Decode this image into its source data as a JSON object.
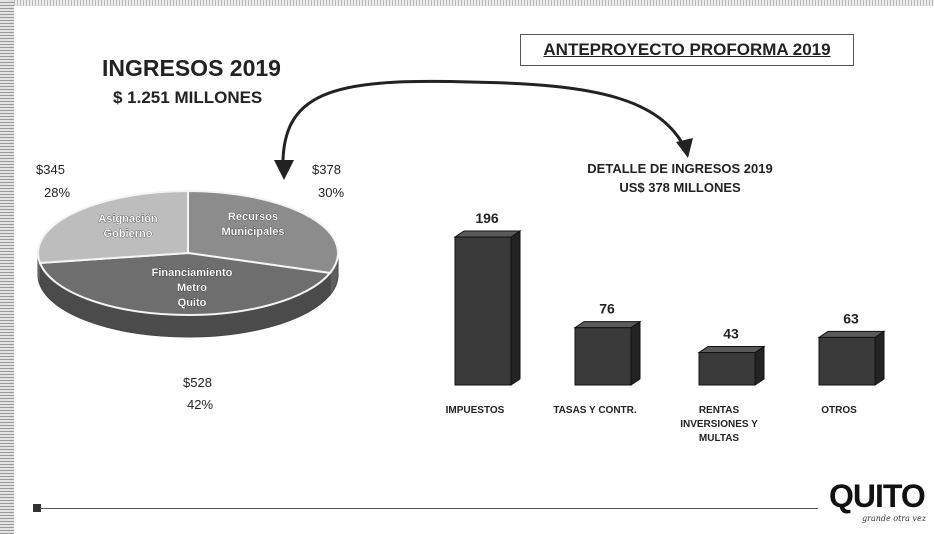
{
  "header": {
    "title": "ANTEPROYECTO PROFORMA 2019"
  },
  "pie_block": {
    "title": "INGRESOS 2019",
    "subtitle": "$ 1.251 MILLONES"
  },
  "bar_block": {
    "title": "DETALLE DE INGRESOS 2019",
    "subtitle": "US$ 378 MILLONES"
  },
  "logo": {
    "text": "QUITO",
    "tagline": "grande otra vez"
  },
  "chart_data": [
    {
      "type": "pie",
      "title": "INGRESOS 2019",
      "subtitle": "$ 1.251 MILLONES",
      "slices": [
        {
          "label": "Recursos Municipales",
          "value": 378,
          "value_label": "$378",
          "percent_label": "30%",
          "color": "#8c8c8c"
        },
        {
          "label": "Financiamiento Metro Quito",
          "value": 528,
          "value_label": "$528",
          "percent_label": "42%",
          "color": "#6e6e6e"
        },
        {
          "label": "Asignación Gobierno",
          "value": 345,
          "value_label": "$345",
          "percent_label": "28%",
          "color": "#bdbdbd"
        }
      ]
    },
    {
      "type": "bar",
      "title": "DETALLE DE INGRESOS 2019",
      "subtitle": "US$ 378 MILLONES",
      "categories": [
        "IMPUESTOS",
        "TASAS Y CONTR.",
        "RENTAS INVERSIONES Y MULTAS",
        "OTROS"
      ],
      "category_lines": [
        [
          "IMPUESTOS"
        ],
        [
          "TASAS Y CONTR."
        ],
        [
          "RENTAS",
          "INVERSIONES Y",
          "MULTAS"
        ],
        [
          "OTROS"
        ]
      ],
      "values": [
        196,
        76,
        43,
        63
      ],
      "ylim": [
        0,
        196
      ],
      "bar_color": "#3a3a3a",
      "grid": false
    }
  ]
}
